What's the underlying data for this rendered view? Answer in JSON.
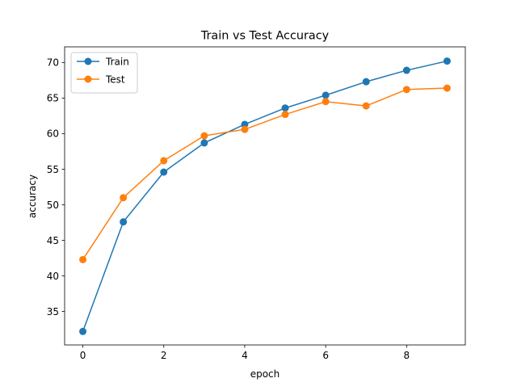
{
  "chart_data": {
    "type": "line",
    "title": "Train vs Test Accuracy",
    "xlabel": "epoch",
    "ylabel": "accuracy",
    "x": [
      0,
      1,
      2,
      3,
      4,
      5,
      6,
      7,
      8,
      9
    ],
    "xlim": [
      -0.45,
      9.45
    ],
    "ylim": [
      30.3,
      72.2
    ],
    "xticks": [
      0,
      2,
      4,
      6,
      8
    ],
    "yticks": [
      35,
      40,
      45,
      50,
      55,
      60,
      65,
      70
    ],
    "grid": false,
    "legend_position": "upper-left",
    "series": [
      {
        "name": "Train",
        "color": "#1f77b4",
        "marker": "circle",
        "values": [
          32.2,
          47.6,
          54.6,
          58.7,
          61.3,
          63.6,
          65.4,
          67.3,
          68.9,
          70.2
        ]
      },
      {
        "name": "Test",
        "color": "#ff7f0e",
        "marker": "circle",
        "values": [
          42.3,
          51.0,
          56.2,
          59.7,
          60.6,
          62.7,
          64.5,
          63.9,
          66.2,
          66.4
        ]
      }
    ]
  }
}
